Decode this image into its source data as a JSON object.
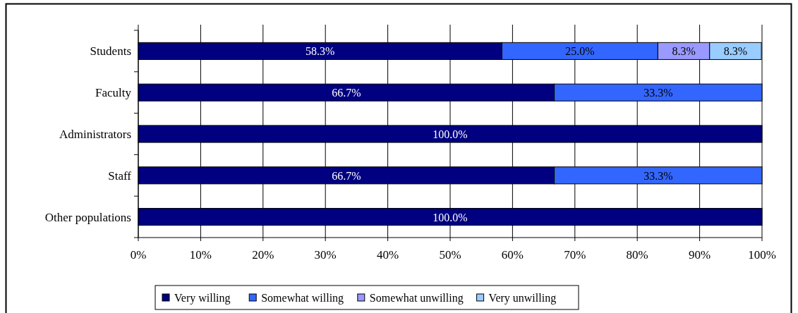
{
  "chart_data": {
    "type": "bar",
    "orientation": "horizontal",
    "stacked": true,
    "categories": [
      "Students",
      "Faculty",
      "Administrators",
      "Staff",
      "Other populations"
    ],
    "series": [
      {
        "name": "Very willing",
        "color": "#000080",
        "values": [
          58.3,
          66.7,
          100.0,
          66.7,
          100.0
        ],
        "value_labels": [
          "58.3%",
          "66.7%",
          "100.0%",
          "66.7%",
          "100.0%"
        ]
      },
      {
        "name": "Somewhat willing",
        "color": "#3366ff",
        "values": [
          25.0,
          33.3,
          null,
          33.3,
          null
        ],
        "value_labels": [
          "25.0%",
          "33.3%",
          null,
          "33.3%",
          null
        ]
      },
      {
        "name": "Somewhat unwilling",
        "color": "#9999ff",
        "values": [
          8.3,
          null,
          null,
          null,
          null
        ],
        "value_labels": [
          "8.3%",
          null,
          null,
          null,
          null
        ]
      },
      {
        "name": "Very unwilling",
        "color": "#99ccff",
        "values": [
          8.3,
          null,
          null,
          null,
          null
        ],
        "value_labels": [
          "8.3%",
          null,
          null,
          null,
          null
        ]
      }
    ],
    "xlim": [
      0,
      100
    ],
    "xticks": [
      {
        "value": 0,
        "label": "0%"
      },
      {
        "value": 10,
        "label": "10%"
      },
      {
        "value": 20,
        "label": "20%"
      },
      {
        "value": 30,
        "label": "30%"
      },
      {
        "value": 40,
        "label": "40%"
      },
      {
        "value": 50,
        "label": "50%"
      },
      {
        "value": 60,
        "label": "60%"
      },
      {
        "value": 70,
        "label": "70%"
      },
      {
        "value": 80,
        "label": "80%"
      },
      {
        "value": 90,
        "label": "90%"
      },
      {
        "value": 100,
        "label": "100%"
      }
    ],
    "grid": "x",
    "legend": "bottom"
  }
}
